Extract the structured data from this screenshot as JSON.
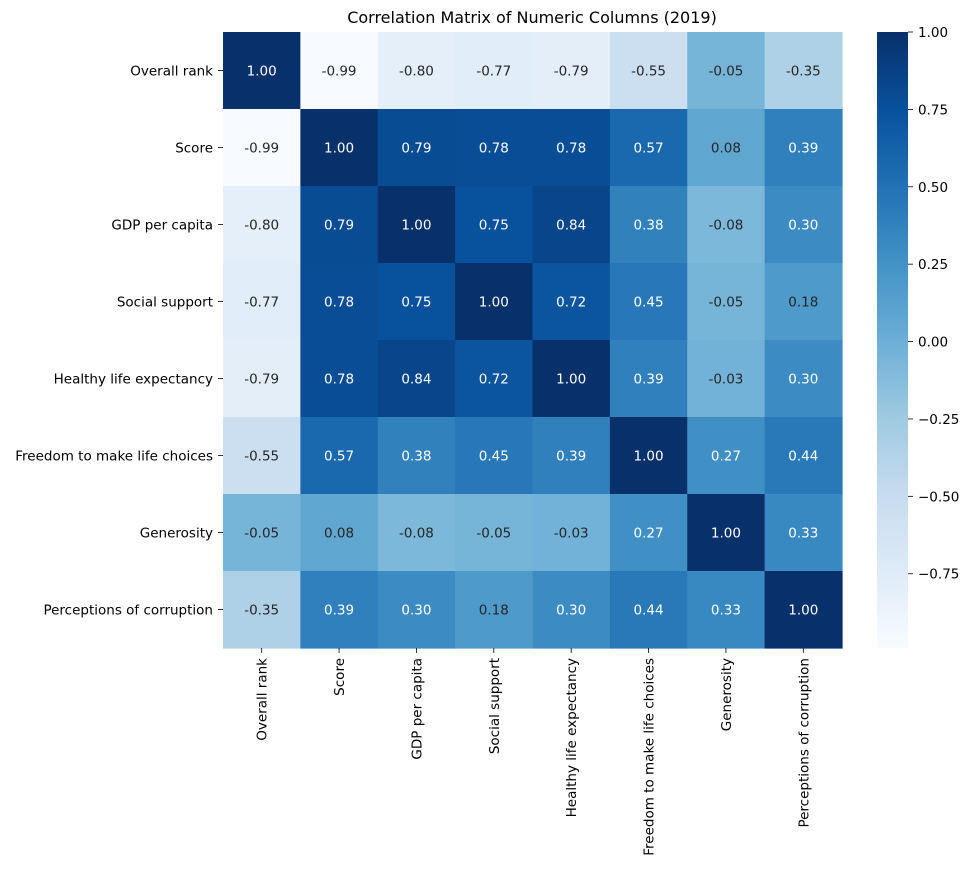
{
  "chart_data": {
    "type": "heatmap",
    "title": "Correlation Matrix of Numeric Columns (2019)",
    "xlabel": "",
    "ylabel": "",
    "categories": [
      "Overall rank",
      "Score",
      "GDP per capita",
      "Social support",
      "Healthy life expectancy",
      "Freedom to make life choices",
      "Generosity",
      "Perceptions of corruption"
    ],
    "values": [
      [
        1.0,
        -0.99,
        -0.8,
        -0.77,
        -0.79,
        -0.55,
        -0.05,
        -0.35
      ],
      [
        -0.99,
        1.0,
        0.79,
        0.78,
        0.78,
        0.57,
        0.08,
        0.39
      ],
      [
        -0.8,
        0.79,
        1.0,
        0.75,
        0.84,
        0.38,
        -0.08,
        0.3
      ],
      [
        -0.77,
        0.78,
        0.75,
        1.0,
        0.72,
        0.45,
        -0.05,
        0.18
      ],
      [
        -0.79,
        0.78,
        0.84,
        0.72,
        1.0,
        0.39,
        -0.03,
        0.3
      ],
      [
        -0.55,
        0.57,
        0.38,
        0.45,
        0.39,
        1.0,
        0.27,
        0.44
      ],
      [
        -0.05,
        0.08,
        -0.08,
        -0.05,
        -0.03,
        0.27,
        1.0,
        0.33
      ],
      [
        -0.35,
        0.39,
        0.3,
        0.18,
        0.3,
        0.44,
        0.33,
        1.0
      ]
    ],
    "colorscale": "Blues",
    "vmin": -0.99,
    "vmax": 1.0,
    "colorbar_ticks": [
      1.0,
      0.75,
      0.5,
      0.25,
      0.0,
      -0.25,
      -0.5,
      -0.75
    ],
    "colorbar_tick_labels": [
      "1.00",
      "0.75",
      "0.50",
      "0.25",
      "0.00",
      "−0.25",
      "−0.50",
      "−0.75"
    ],
    "annotation_format": "2 decimals",
    "grid": false,
    "legend": "colorbar-right"
  }
}
